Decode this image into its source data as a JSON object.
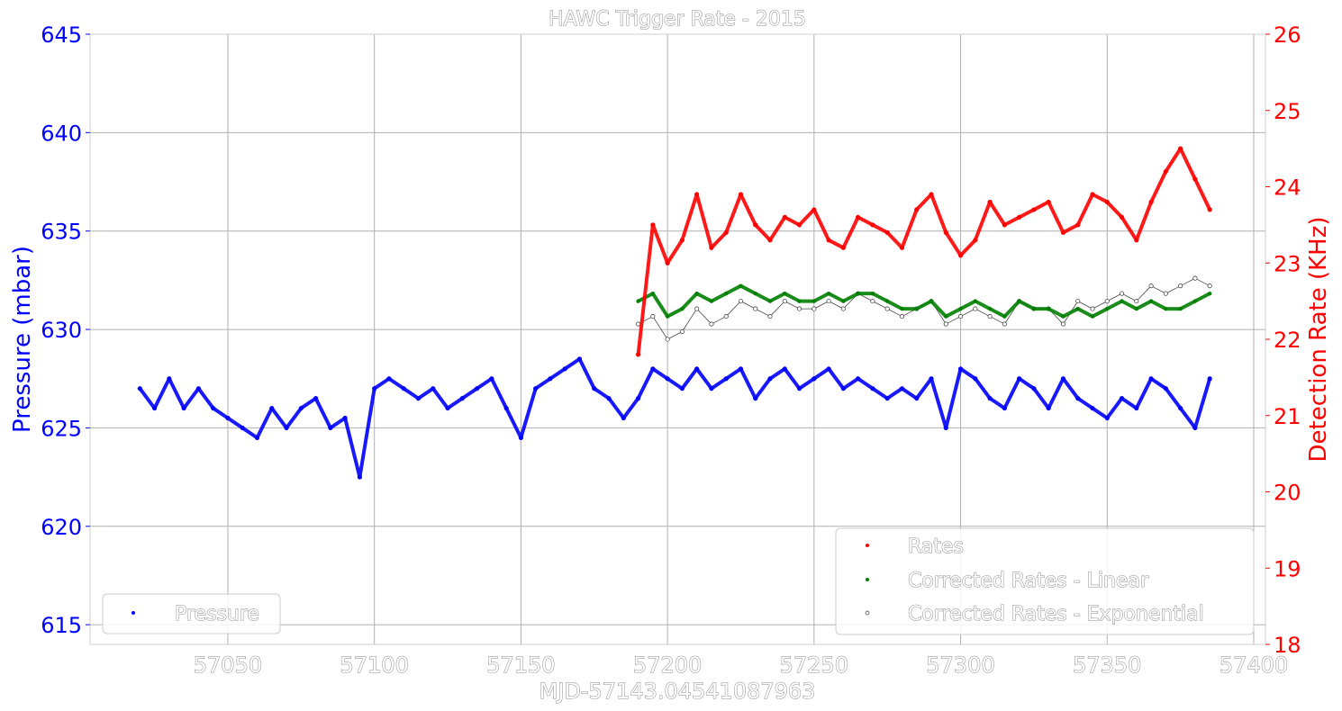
{
  "chart_data": {
    "type": "scatter",
    "title": "HAWC Trigger Rate - 2015",
    "xlabel": "MJD-57143.04541087963",
    "ylabel_left": "Pressure (mbar)",
    "ylabel_right": "Detection Rate (KHz)",
    "xlim": [
      57003,
      57404
    ],
    "ylim_left": [
      614,
      645
    ],
    "ylim_right": [
      18,
      26
    ],
    "x_ticks": [
      57050,
      57100,
      57150,
      57200,
      57250,
      57300,
      57350,
      57400
    ],
    "y_left_ticks": [
      615,
      620,
      625,
      630,
      635,
      640,
      645
    ],
    "y_right_ticks": [
      18,
      19,
      20,
      21,
      22,
      23,
      24,
      25,
      26
    ],
    "grid": true,
    "colors": {
      "pressure": "#0000ff",
      "rates": "#ff0000",
      "linear": "#008000",
      "exponential": "#ffffff",
      "grid": "#b0b0b0"
    },
    "legend_left": {
      "placement": "lower-left",
      "entries": [
        "Pressure"
      ]
    },
    "legend_right": {
      "placement": "lower-right",
      "entries": [
        "Rates",
        "Corrected Rates - Linear",
        "Corrected Rates - Exponential"
      ]
    },
    "series": [
      {
        "name": "Pressure",
        "axis": "left",
        "x": [
          57020,
          57025,
          57030,
          57035,
          57040,
          57045,
          57050,
          57055,
          57060,
          57065,
          57070,
          57075,
          57080,
          57085,
          57090,
          57095,
          57100,
          57105,
          57110,
          57115,
          57120,
          57125,
          57130,
          57135,
          57140,
          57145,
          57150,
          57155,
          57160,
          57165,
          57170,
          57175,
          57180,
          57185,
          57190,
          57195,
          57200,
          57205,
          57210,
          57215,
          57220,
          57225,
          57230,
          57235,
          57240,
          57245,
          57250,
          57255,
          57260,
          57265,
          57270,
          57275,
          57280,
          57285,
          57290,
          57295,
          57300,
          57305,
          57310,
          57315,
          57320,
          57325,
          57330,
          57335,
          57340,
          57345,
          57350,
          57355,
          57360,
          57365,
          57370,
          57375,
          57380,
          57385
        ],
        "y": [
          627,
          626,
          627.5,
          626,
          627,
          626,
          625.5,
          625,
          624.5,
          626,
          625,
          626,
          626.5,
          625,
          625.5,
          622.5,
          627,
          627.5,
          627,
          626.5,
          627,
          626,
          626.5,
          627,
          627.5,
          626,
          624.5,
          627,
          627.5,
          628,
          628.5,
          627,
          626.5,
          625.5,
          626.5,
          628,
          627.5,
          627,
          628,
          627,
          627.5,
          628,
          626.5,
          627.5,
          628,
          627,
          627.5,
          628,
          627,
          627.5,
          627,
          626.5,
          627,
          626.5,
          627.5,
          625,
          628,
          627.5,
          626.5,
          626,
          627.5,
          627,
          626,
          627.5,
          626.5,
          626,
          625.5,
          626.5,
          626,
          627.5,
          627,
          626,
          625,
          627.5
        ]
      },
      {
        "name": "Rates",
        "axis": "right",
        "x": [
          57190,
          57195,
          57200,
          57205,
          57210,
          57215,
          57220,
          57225,
          57230,
          57235,
          57240,
          57245,
          57250,
          57255,
          57260,
          57265,
          57270,
          57275,
          57280,
          57285,
          57290,
          57295,
          57300,
          57305,
          57310,
          57315,
          57320,
          57325,
          57330,
          57335,
          57340,
          57345,
          57350,
          57355,
          57360,
          57365,
          57370,
          57375,
          57380,
          57385
        ],
        "y": [
          21.8,
          23.5,
          23,
          23.3,
          23.9,
          23.2,
          23.4,
          23.9,
          23.5,
          23.3,
          23.6,
          23.5,
          23.7,
          23.3,
          23.2,
          23.6,
          23.5,
          23.4,
          23.2,
          23.7,
          23.9,
          23.4,
          23.1,
          23.3,
          23.8,
          23.5,
          23.6,
          23.7,
          23.8,
          23.4,
          23.5,
          23.9,
          23.8,
          23.6,
          23.3,
          23.8,
          24.2,
          24.5,
          24.1,
          23.7
        ]
      },
      {
        "name": "Corrected Rates - Linear",
        "axis": "right",
        "x": [
          57190,
          57195,
          57200,
          57205,
          57210,
          57215,
          57220,
          57225,
          57230,
          57235,
          57240,
          57245,
          57250,
          57255,
          57260,
          57265,
          57270,
          57275,
          57280,
          57285,
          57290,
          57295,
          57300,
          57305,
          57310,
          57315,
          57320,
          57325,
          57330,
          57335,
          57340,
          57345,
          57350,
          57355,
          57360,
          57365,
          57370,
          57375,
          57380,
          57385
        ],
        "y": [
          22.5,
          22.6,
          22.3,
          22.4,
          22.6,
          22.5,
          22.6,
          22.7,
          22.6,
          22.5,
          22.6,
          22.5,
          22.5,
          22.6,
          22.5,
          22.6,
          22.6,
          22.5,
          22.4,
          22.4,
          22.5,
          22.3,
          22.4,
          22.5,
          22.4,
          22.3,
          22.5,
          22.4,
          22.4,
          22.3,
          22.4,
          22.3,
          22.4,
          22.5,
          22.4,
          22.5,
          22.4,
          22.4,
          22.5,
          22.6
        ]
      },
      {
        "name": "Corrected Rates - Exponential",
        "axis": "right",
        "x": [
          57190,
          57195,
          57200,
          57205,
          57210,
          57215,
          57220,
          57225,
          57230,
          57235,
          57240,
          57245,
          57250,
          57255,
          57260,
          57265,
          57270,
          57275,
          57280,
          57285,
          57290,
          57295,
          57300,
          57305,
          57310,
          57315,
          57320,
          57325,
          57330,
          57335,
          57340,
          57345,
          57350,
          57355,
          57360,
          57365,
          57370,
          57375,
          57380,
          57385
        ],
        "y": [
          22.2,
          22.3,
          22.0,
          22.1,
          22.4,
          22.2,
          22.3,
          22.5,
          22.4,
          22.3,
          22.5,
          22.4,
          22.4,
          22.5,
          22.4,
          22.6,
          22.5,
          22.4,
          22.3,
          22.4,
          22.5,
          22.2,
          22.3,
          22.4,
          22.3,
          22.2,
          22.5,
          22.4,
          22.4,
          22.2,
          22.5,
          22.4,
          22.5,
          22.6,
          22.5,
          22.7,
          22.6,
          22.7,
          22.8,
          22.7
        ]
      }
    ]
  }
}
